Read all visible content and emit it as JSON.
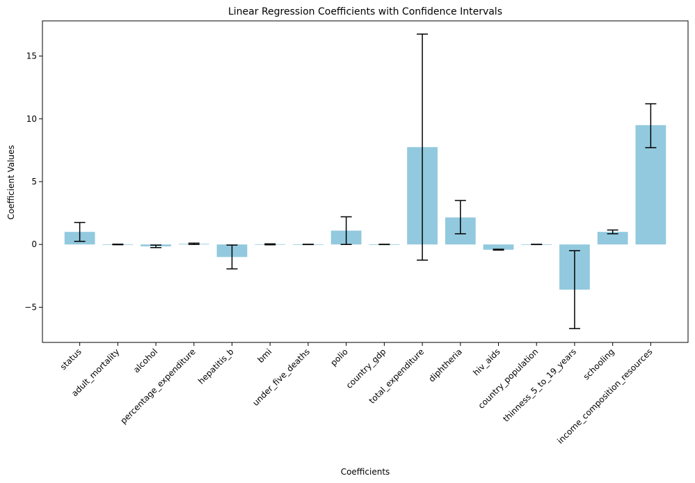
{
  "chart_data": {
    "type": "bar",
    "title": "Linear Regression Coefficients with Confidence Intervals",
    "xlabel": "Coefficients",
    "ylabel": "Coefficient Values",
    "ylim": [
      -7.8,
      17.8
    ],
    "yticks": [
      -5,
      0,
      5,
      10,
      15
    ],
    "grid": false,
    "bar_color": "#92c9de",
    "error_color": "#000000",
    "categories": [
      "status",
      "adult_mortality",
      "alcohol",
      "percentage_expenditure",
      "hepatitis_b",
      "bmi",
      "under_five_deaths",
      "polio",
      "country_gdp",
      "total_expenditure",
      "diphtheria",
      "hiv_aids",
      "country_population",
      "thinness_5_to_19_years",
      "schooling",
      "income_composition_resources"
    ],
    "values": [
      1.0,
      0.0,
      -0.15,
      0.05,
      -1.0,
      0.02,
      0.0,
      1.1,
      0.0,
      7.75,
      2.15,
      -0.42,
      0.0,
      -3.6,
      1.0,
      9.5
    ],
    "ci_lower": [
      0.25,
      -0.02,
      -0.25,
      0.0,
      -1.95,
      -0.03,
      -0.01,
      0.0,
      -0.01,
      -1.25,
      0.85,
      -0.45,
      -0.01,
      -6.7,
      0.85,
      7.7
    ],
    "ci_upper": [
      1.75,
      0.02,
      -0.05,
      0.1,
      -0.05,
      0.05,
      0.01,
      2.2,
      0.01,
      16.75,
      3.5,
      -0.38,
      0.01,
      -0.5,
      1.15,
      11.2
    ]
  }
}
